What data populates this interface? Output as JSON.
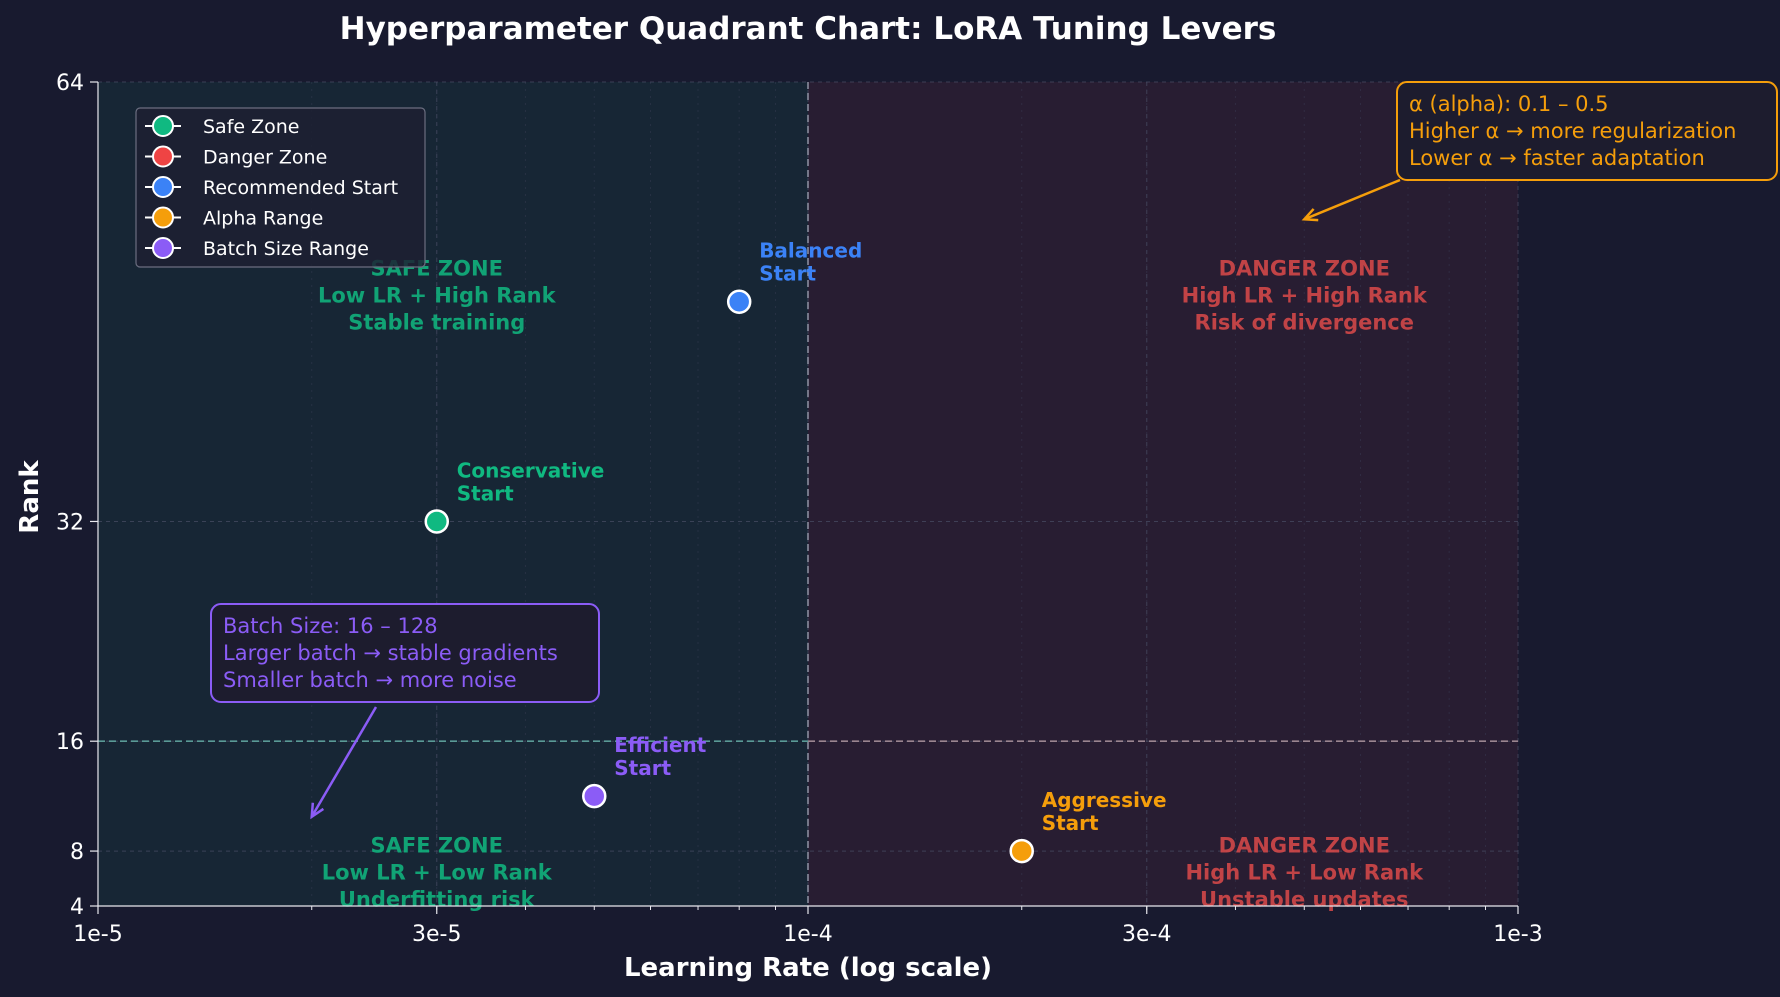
{
  "chart_data": {
    "type": "scatter",
    "title": "Hyperparameter Quadrant Chart: LoRA Tuning Levers",
    "xlabel": "Learning Rate (log scale)",
    "ylabel": "Rank",
    "x_scale": "log",
    "xlim": [
      1e-05,
      0.001
    ],
    "ylim": [
      4,
      64
    ],
    "x_ticks": [
      {
        "value": 1e-05,
        "label": "1e-5"
      },
      {
        "value": 3e-05,
        "label": "3e-5"
      },
      {
        "value": 0.0001,
        "label": "1e-4"
      },
      {
        "value": 0.0003,
        "label": "3e-4"
      },
      {
        "value": 0.001,
        "label": "1e-3"
      }
    ],
    "y_ticks": [
      {
        "value": 4,
        "label": "4"
      },
      {
        "value": 8,
        "label": "8"
      },
      {
        "value": 16,
        "label": "16"
      },
      {
        "value": 32,
        "label": "32"
      },
      {
        "value": 64,
        "label": "64"
      }
    ],
    "grid": true,
    "thresholds": {
      "x": 0.0001,
      "y": 16
    },
    "legend_position": "top-left",
    "legend": [
      {
        "label": "Safe Zone",
        "color": "#10b981"
      },
      {
        "label": "Danger Zone",
        "color": "#ef4444"
      },
      {
        "label": "Recommended Start",
        "color": "#3b82f6"
      },
      {
        "label": "Alpha Range",
        "color": "#f59e0b"
      },
      {
        "label": "Batch Size Range",
        "color": "#8b5cf6"
      }
    ],
    "points": [
      {
        "x": 3e-05,
        "y": 32,
        "label": [
          "Conservative",
          "Start"
        ],
        "color": "#10b981"
      },
      {
        "x": 8e-05,
        "y": 48,
        "label": [
          "Balanced",
          "Start"
        ],
        "color": "#3b82f6"
      },
      {
        "x": 5e-05,
        "y": 12,
        "label": [
          "Efficient",
          "Start"
        ],
        "color": "#8b5cf6"
      },
      {
        "x": 0.0002,
        "y": 8,
        "label": [
          "Aggressive",
          "Start"
        ],
        "color": "#f59e0b"
      }
    ],
    "zone_labels": [
      {
        "x": 3e-05,
        "y": 48,
        "lines": [
          "SAFE ZONE",
          "Low LR + High Rank",
          "Stable training"
        ],
        "color": "#10b981"
      },
      {
        "x": 3e-05,
        "y": 6,
        "lines": [
          "SAFE ZONE",
          "Low LR + Low Rank",
          "Underfitting risk"
        ],
        "color": "#10b981"
      },
      {
        "x": 0.0005,
        "y": 48,
        "lines": [
          "DANGER ZONE",
          "High LR + High Rank",
          "Risk of divergence"
        ],
        "color": "#dc4a4a"
      },
      {
        "x": 0.0005,
        "y": 6,
        "lines": [
          "DANGER ZONE",
          "High LR + Low Rank",
          "Unstable updates"
        ],
        "color": "#dc4a4a"
      }
    ],
    "annotations": [
      {
        "lines": [
          "α (alpha): 0.1 – 0.5",
          "Higher α → more regularization",
          "Lower α → faster adaptation"
        ],
        "color": "#f59e0b",
        "arrow_to": {
          "x": 0.0005,
          "y": 54
        }
      },
      {
        "lines": [
          "Batch Size: 16 – 128",
          "Larger batch → stable gradients",
          "Smaller batch → more noise"
        ],
        "color": "#8b5cf6",
        "arrow_to": {
          "x": 2e-05,
          "y": 10.5
        }
      }
    ]
  }
}
